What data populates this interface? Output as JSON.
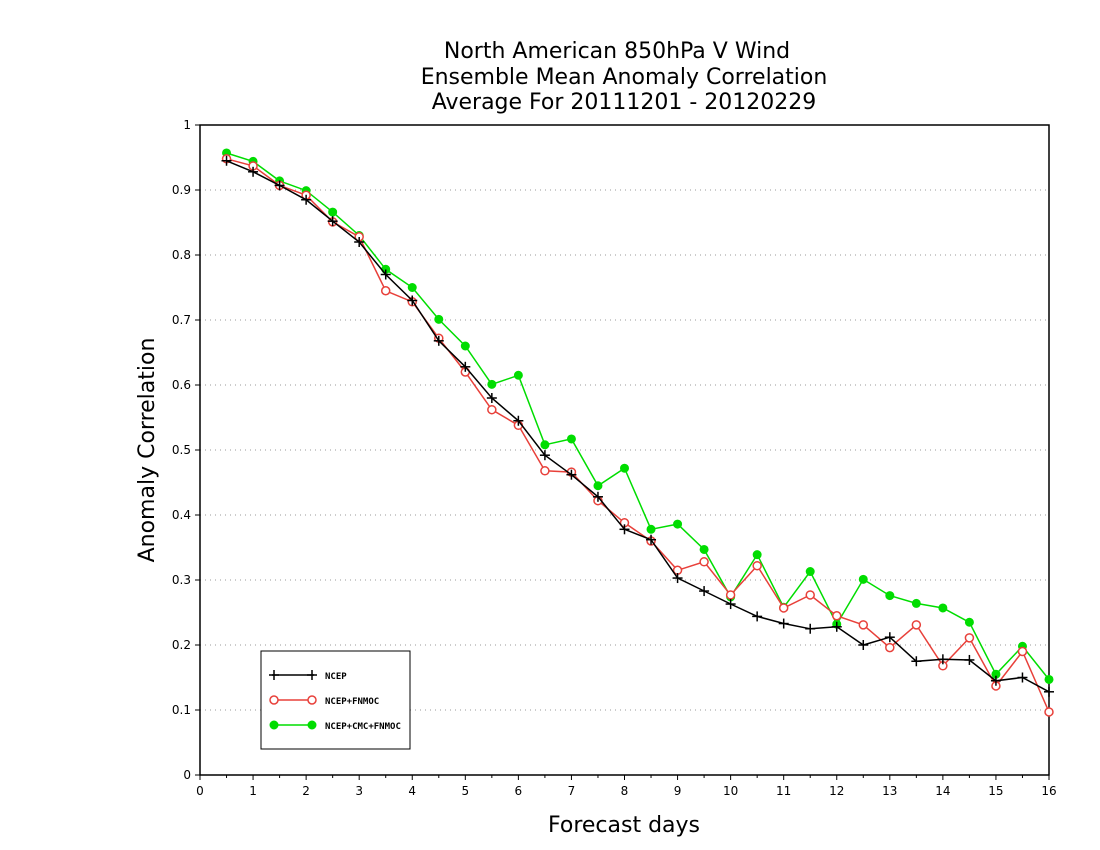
{
  "chart_data": {
    "type": "line",
    "title": [
      "North American 850hPa V Wind",
      "Ensemble Mean Anomaly Correlation",
      "Average For 20111201 - 20120229"
    ],
    "xlabel": "Forecast days",
    "ylabel": "Anomaly Correlation",
    "xlim": [
      0,
      16
    ],
    "ylim": [
      0,
      1
    ],
    "xticks": [
      "0",
      "1",
      "2",
      "3",
      "4",
      "5",
      "6",
      "7",
      "8",
      "9",
      "10",
      "11",
      "12",
      "13",
      "14",
      "15",
      "16"
    ],
    "yticks": [
      "0",
      "0.1",
      "0.2",
      "0.3",
      "0.4",
      "0.5",
      "0.6",
      "0.7",
      "0.8",
      "0.9",
      "1"
    ],
    "grid": "horizontal dotted",
    "legend_position": "bottom-left",
    "x": [
      0.5,
      1,
      1.5,
      2,
      2.5,
      3,
      3.5,
      4,
      4.5,
      5,
      5.5,
      6,
      6.5,
      7,
      7.5,
      8,
      8.5,
      9,
      9.5,
      10,
      10.5,
      11,
      11.5,
      12,
      12.5,
      13,
      13.5,
      14,
      14.5,
      15,
      15.5,
      16
    ],
    "series": [
      {
        "name": "NCEP",
        "color": "#000000",
        "marker": "plus",
        "values": [
          0.945,
          0.928,
          0.907,
          0.885,
          0.852,
          0.82,
          0.77,
          0.73,
          0.668,
          0.628,
          0.58,
          0.545,
          0.492,
          0.462,
          0.428,
          0.378,
          0.362,
          0.303,
          0.283,
          0.263,
          0.244,
          0.233,
          0.225,
          0.228,
          0.2,
          0.212,
          0.175,
          0.178,
          0.177,
          0.145,
          0.15,
          0.128
        ]
      },
      {
        "name": "NCEP+FNMOC",
        "color": "#e8403a",
        "marker": "open-circle",
        "values": [
          0.948,
          0.937,
          0.907,
          0.892,
          0.851,
          0.828,
          0.745,
          0.728,
          0.672,
          0.62,
          0.562,
          0.538,
          0.468,
          0.466,
          0.422,
          0.388,
          0.36,
          0.315,
          0.328,
          0.277,
          0.322,
          0.257,
          0.277,
          0.245,
          0.231,
          0.196,
          0.231,
          0.168,
          0.211,
          0.137,
          0.19,
          0.097
        ]
      },
      {
        "name": "NCEP+CMC+FNMOC",
        "color": "#00dd00",
        "marker": "filled-circle",
        "values": [
          0.957,
          0.944,
          0.914,
          0.899,
          0.866,
          0.83,
          0.778,
          0.75,
          0.701,
          0.66,
          0.601,
          0.615,
          0.508,
          0.517,
          0.445,
          0.472,
          0.378,
          0.386,
          0.347,
          0.274,
          0.339,
          0.258,
          0.313,
          0.232,
          0.301,
          0.276,
          0.264,
          0.257,
          0.235,
          0.155,
          0.198,
          0.147
        ]
      }
    ]
  }
}
